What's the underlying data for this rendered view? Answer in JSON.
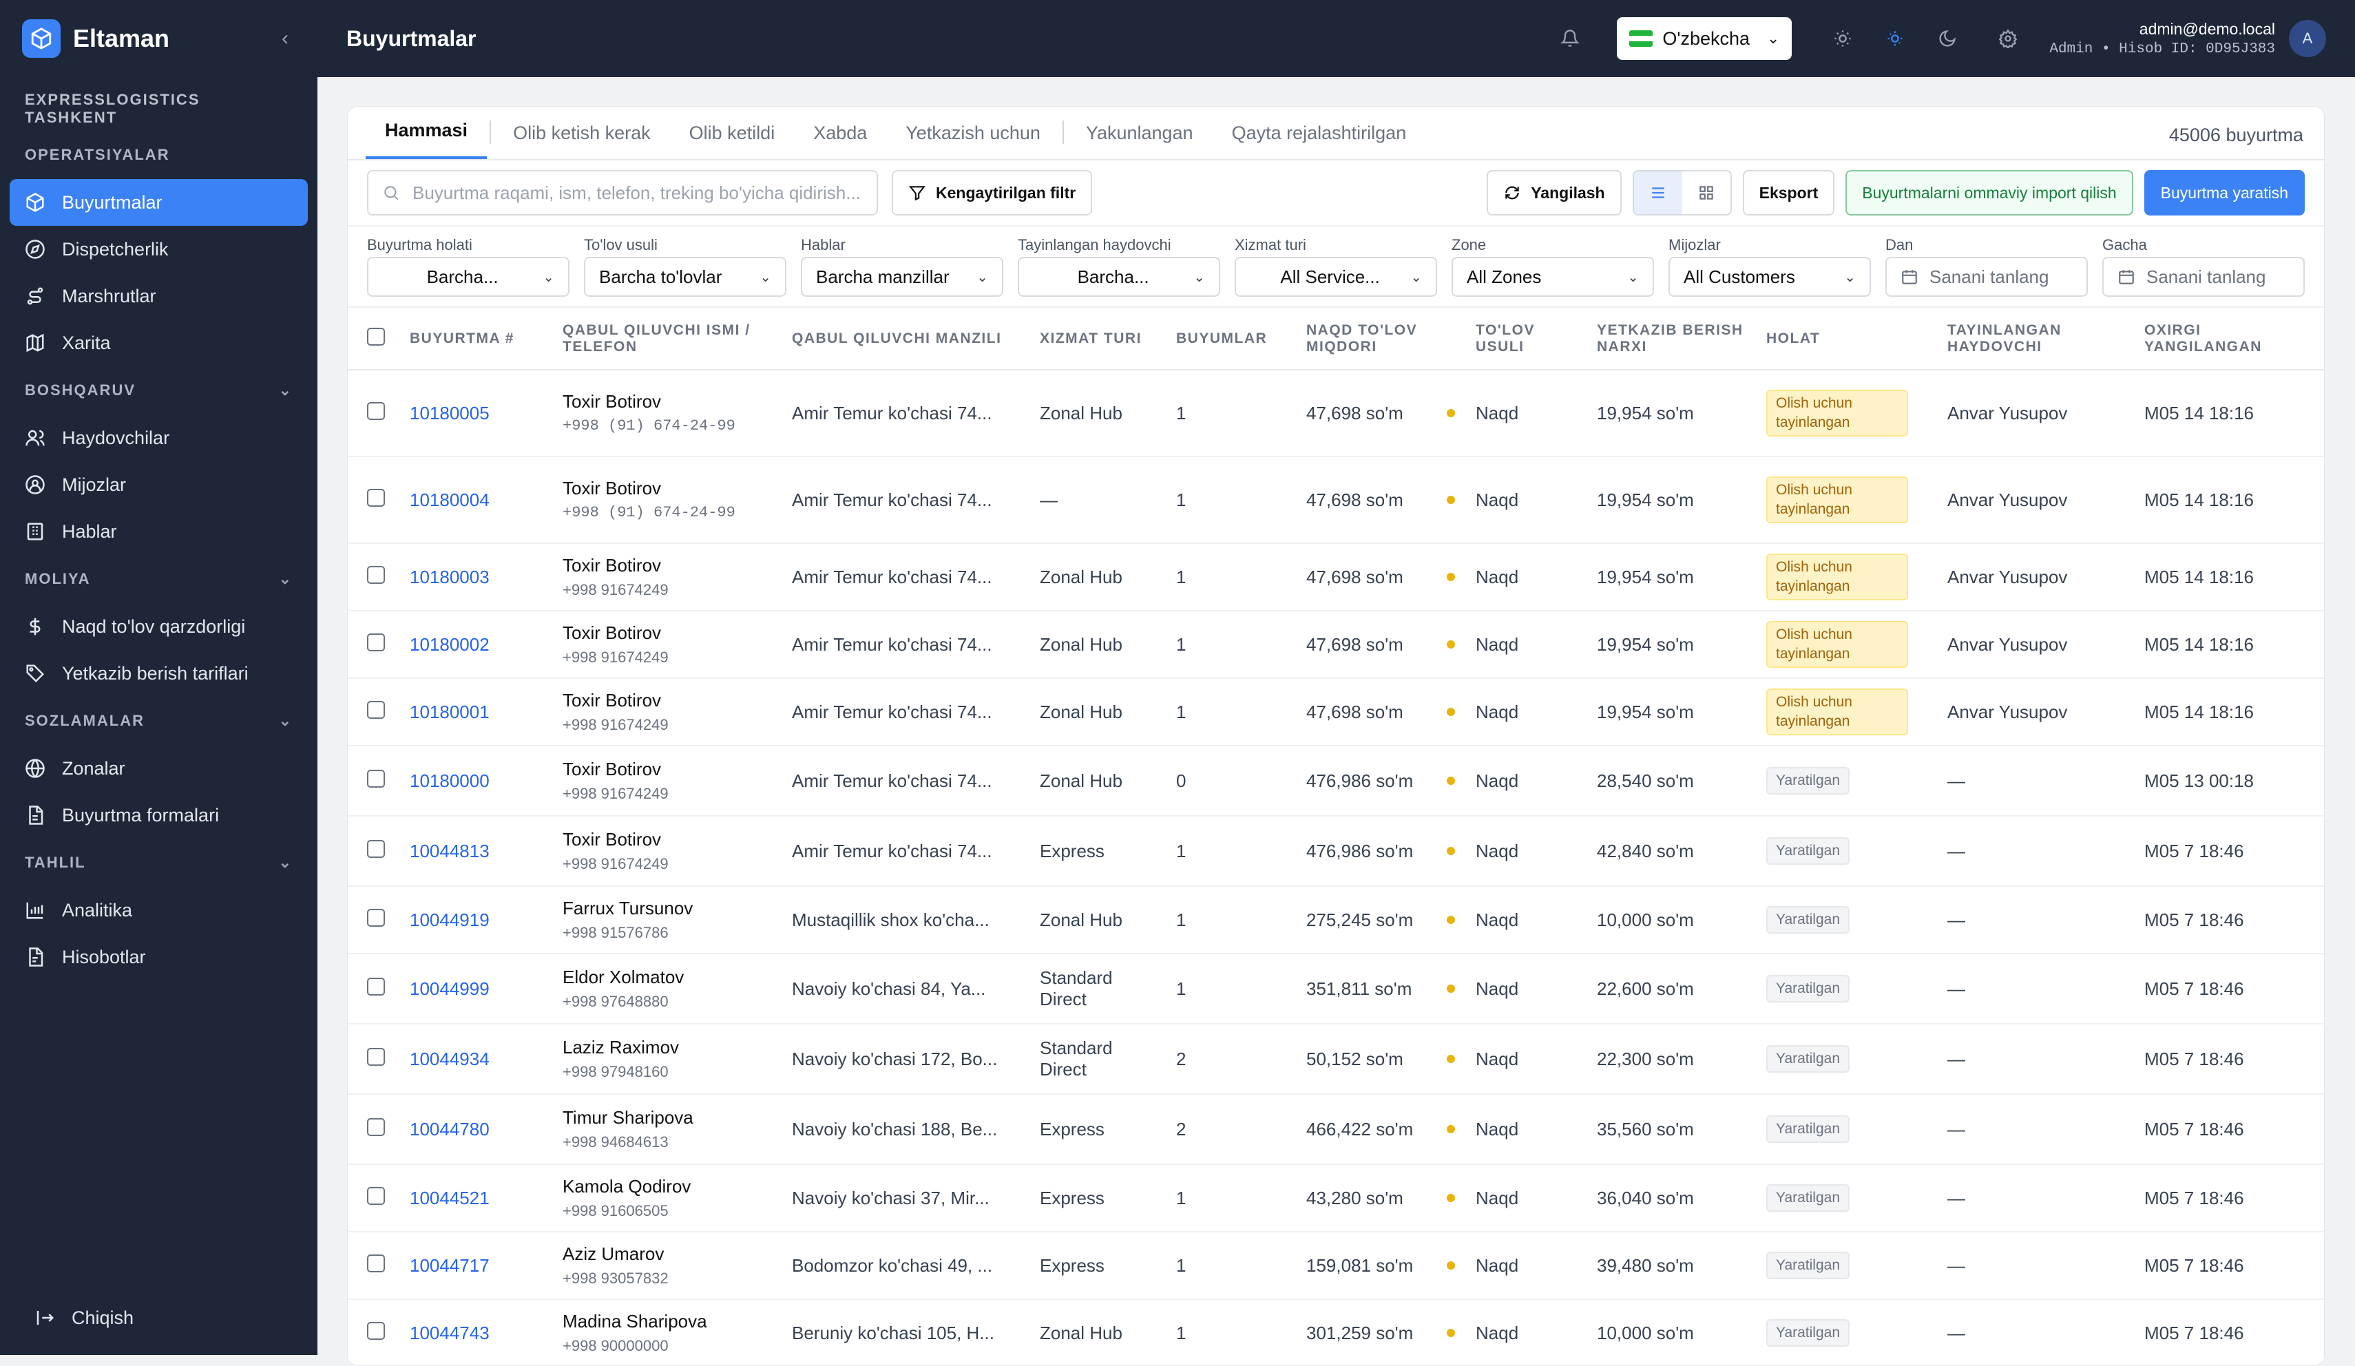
{
  "app": {
    "name": "Eltaman",
    "company": "EXPRESSLOGISTICS TASHKENT"
  },
  "sidebar": {
    "sections": [
      {
        "title": "OPERATSIYALAR"
      },
      {
        "title": "BOSHQARUV"
      },
      {
        "title": "MOLIYA"
      },
      {
        "title": "SOZLAMALAR"
      },
      {
        "title": "TAHLIL"
      }
    ],
    "items": {
      "orders": "Buyurtmalar",
      "dispatch": "Dispetcherlik",
      "routes": "Marshrutlar",
      "map": "Xarita",
      "drivers": "Haydovchilar",
      "customers": "Mijozlar",
      "hubs": "Hablar",
      "cod": "Naqd to'lov qarzdorligi",
      "tariffs": "Yetkazib berish tariflari",
      "zones": "Zonalar",
      "forms": "Buyurtma formalari",
      "analytics": "Analitika",
      "reports": "Hisobotlar"
    },
    "logout": "Chiqish"
  },
  "header": {
    "title": "Buyurtmalar",
    "language": "O'zbekcha",
    "user_email": "admin@demo.local",
    "user_meta": "Admin • Hisob ID: 0D95J383",
    "avatar": "A"
  },
  "tabs": [
    "Hammasi",
    "Olib ketish kerak",
    "Olib ketildi",
    "Xabda",
    "Yetkazish uchun",
    "Yakunlangan",
    "Qayta rejalashtirilgan"
  ],
  "order_count": "45006 buyurtma",
  "toolbar": {
    "search_placeholder": "Buyurtma raqami, ism, telefon, treking bo'yicha qidirish...",
    "advanced_filter": "Kengaytirilgan filtr",
    "refresh": "Yangilash",
    "export": "Eksport",
    "import": "Buyurtmalarni ommaviy import qilish",
    "create": "Buyurtma yaratish"
  },
  "filters": [
    {
      "label": "Buyurtma holati",
      "value": "Barcha..."
    },
    {
      "label": "To'lov usuli",
      "value": "Barcha to'lovlar"
    },
    {
      "label": "Hablar",
      "value": "Barcha manzillar"
    },
    {
      "label": "Tayinlangan haydovchi",
      "value": "Barcha..."
    },
    {
      "label": "Xizmat turi",
      "value": "All Service..."
    },
    {
      "label": "Zone",
      "value": "All Zones"
    },
    {
      "label": "Mijozlar",
      "value": "All Customers"
    },
    {
      "label": "Dan",
      "value": "Sanani tanlang"
    },
    {
      "label": "Gacha",
      "value": "Sanani tanlang"
    }
  ],
  "table": {
    "columns": [
      "BUYURTMA #",
      "QABUL QILUVCHI ISMI / TELEFON",
      "QABUL QILUVCHI MANZILI",
      "XIZMAT TURI",
      "BUYUMLAR",
      "NAQD TO'LOV MIQDORI",
      "TO'LOV USULI",
      "YETKAZIB BERISH NARXI",
      "HOLAT",
      "TAYINLANGAN HAYDOVCHI",
      "OXIRGI YANGILANGAN"
    ],
    "rows": [
      {
        "id": "10180005",
        "name": "Toxir Botirov",
        "phone": "+998 (91) 674-24-99",
        "address": "Amir Temur ko'chasi 74...",
        "service": "Zonal Hub",
        "items": "1",
        "cod": "47,698 so'm",
        "payment": "Naqd",
        "fee": "19,954 so'm",
        "status": "Olish uchun tayinlangan",
        "driver": "Anvar Yusupov",
        "updated": "M05 14 18:16"
      },
      {
        "id": "10180004",
        "name": "Toxir Botirov",
        "phone": "+998 (91) 674-24-99",
        "address": "Amir Temur ko'chasi 74...",
        "service": "—",
        "items": "1",
        "cod": "47,698 so'm",
        "payment": "Naqd",
        "fee": "19,954 so'm",
        "status": "Olish uchun tayinlangan",
        "driver": "Anvar Yusupov",
        "updated": "M05 14 18:16"
      },
      {
        "id": "10180003",
        "name": "Toxir Botirov",
        "phone": "+998 91674249",
        "address": "Amir Temur ko'chasi 74...",
        "service": "Zonal Hub",
        "items": "1",
        "cod": "47,698 so'm",
        "payment": "Naqd",
        "fee": "19,954 so'm",
        "status": "Olish uchun tayinlangan",
        "driver": "Anvar Yusupov",
        "updated": "M05 14 18:16"
      },
      {
        "id": "10180002",
        "name": "Toxir Botirov",
        "phone": "+998 91674249",
        "address": "Amir Temur ko'chasi 74...",
        "service": "Zonal Hub",
        "items": "1",
        "cod": "47,698 so'm",
        "payment": "Naqd",
        "fee": "19,954 so'm",
        "status": "Olish uchun tayinlangan",
        "driver": "Anvar Yusupov",
        "updated": "M05 14 18:16"
      },
      {
        "id": "10180001",
        "name": "Toxir Botirov",
        "phone": "+998 91674249",
        "address": "Amir Temur ko'chasi 74...",
        "service": "Zonal Hub",
        "items": "1",
        "cod": "47,698 so'm",
        "payment": "Naqd",
        "fee": "19,954 so'm",
        "status": "Olish uchun tayinlangan",
        "driver": "Anvar Yusupov",
        "updated": "M05 14 18:16"
      },
      {
        "id": "10180000",
        "name": "Toxir Botirov",
        "phone": "+998 91674249",
        "address": "Amir Temur ko'chasi 74...",
        "service": "Zonal Hub",
        "items": "0",
        "cod": "476,986 so'm",
        "payment": "Naqd",
        "fee": "28,540 so'm",
        "status": "Yaratilgan",
        "driver": "—",
        "updated": "M05 13 00:18"
      },
      {
        "id": "10044813",
        "name": "Toxir Botirov",
        "phone": "+998 91674249",
        "address": "Amir Temur ko'chasi 74...",
        "service": "Express",
        "items": "1",
        "cod": "476,986 so'm",
        "payment": "Naqd",
        "fee": "42,840 so'm",
        "status": "Yaratilgan",
        "driver": "—",
        "updated": "M05 7 18:46"
      },
      {
        "id": "10044919",
        "name": "Farrux Tursunov",
        "phone": "+998 91576786",
        "address": "Mustaqillik shox ko'cha...",
        "service": "Zonal Hub",
        "items": "1",
        "cod": "275,245 so'm",
        "payment": "Naqd",
        "fee": "10,000 so'm",
        "status": "Yaratilgan",
        "driver": "—",
        "updated": "M05 7 18:46"
      },
      {
        "id": "10044999",
        "name": "Eldor Xolmatov",
        "phone": "+998 97648880",
        "address": "Navoiy ko'chasi 84, Ya...",
        "service": "Standard Direct",
        "items": "1",
        "cod": "351,811 so'm",
        "payment": "Naqd",
        "fee": "22,600 so'm",
        "status": "Yaratilgan",
        "driver": "—",
        "updated": "M05 7 18:46"
      },
      {
        "id": "10044934",
        "name": "Laziz Raximov",
        "phone": "+998 97948160",
        "address": "Navoiy ko'chasi 172, Bo...",
        "service": "Standard Direct",
        "items": "2",
        "cod": "50,152 so'm",
        "payment": "Naqd",
        "fee": "22,300 so'm",
        "status": "Yaratilgan",
        "driver": "—",
        "updated": "M05 7 18:46"
      },
      {
        "id": "10044780",
        "name": "Timur Sharipova",
        "phone": "+998 94684613",
        "address": "Navoiy ko'chasi 188, Be...",
        "service": "Express",
        "items": "2",
        "cod": "466,422 so'm",
        "payment": "Naqd",
        "fee": "35,560 so'm",
        "status": "Yaratilgan",
        "driver": "—",
        "updated": "M05 7 18:46"
      },
      {
        "id": "10044521",
        "name": "Kamola Qodirov",
        "phone": "+998 91606505",
        "address": "Navoiy ko'chasi 37, Mir...",
        "service": "Express",
        "items": "1",
        "cod": "43,280 so'm",
        "payment": "Naqd",
        "fee": "36,040 so'm",
        "status": "Yaratilgan",
        "driver": "—",
        "updated": "M05 7 18:46"
      },
      {
        "id": "10044717",
        "name": "Aziz Umarov",
        "phone": "+998 93057832",
        "address": "Bodomzor ko'chasi 49, ...",
        "service": "Express",
        "items": "1",
        "cod": "159,081 so'm",
        "payment": "Naqd",
        "fee": "39,480 so'm",
        "status": "Yaratilgan",
        "driver": "—",
        "updated": "M05 7 18:46"
      },
      {
        "id": "10044743",
        "name": "Madina Sharipova",
        "phone": "+998 90000000",
        "address": "Beruniy ko'chasi 105, H...",
        "service": "Zonal Hub",
        "items": "1",
        "cod": "301,259 so'm",
        "payment": "Naqd",
        "fee": "10,000 so'm",
        "status": "Yaratilgan",
        "driver": "—",
        "updated": "M05 7 18:46"
      }
    ]
  },
  "colors": {
    "accent": "#3b82f6",
    "sidebar": "#1e2738",
    "status_pending": "#fef3c7",
    "cod_dot": "#eab308"
  }
}
